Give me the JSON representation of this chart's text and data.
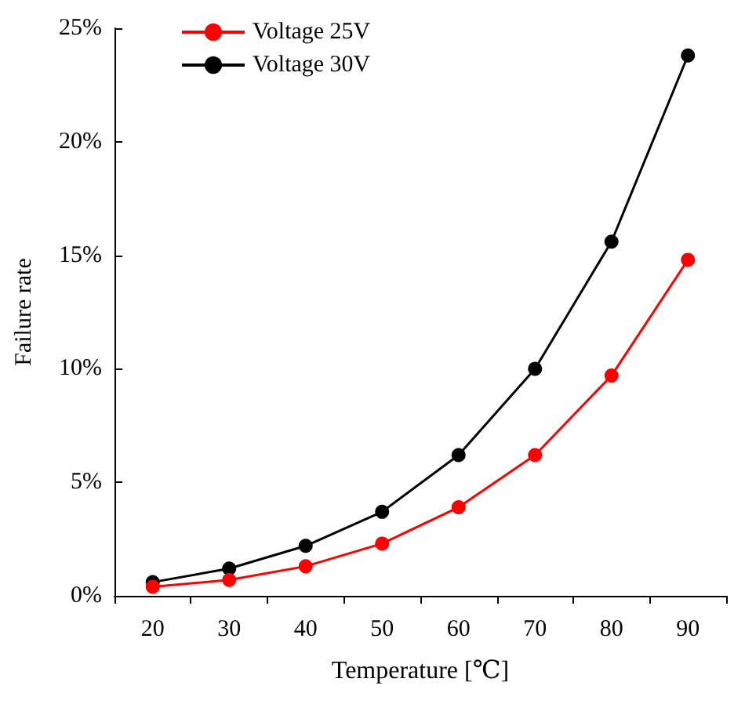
{
  "chart_data": {
    "type": "line",
    "xlabel": "Temperature [℃]",
    "ylabel": "Failure rate",
    "categories": [
      "20",
      "30",
      "40",
      "50",
      "60",
      "70",
      "80",
      "90"
    ],
    "series": [
      {
        "name": "Voltage 25V",
        "color": "#ff0000",
        "values": [
          0.4,
          0.7,
          1.3,
          2.3,
          3.9,
          6.2,
          9.7,
          14.8
        ]
      },
      {
        "name": "Voltage 30V",
        "color": "#000000",
        "values": [
          0.6,
          1.2,
          2.2,
          3.7,
          6.2,
          10.0,
          15.6,
          23.8
        ]
      }
    ],
    "ylim": [
      0,
      25
    ],
    "yticks": [
      {
        "value": 0,
        "label": "0%"
      },
      {
        "value": 5,
        "label": "5%"
      },
      {
        "value": 10,
        "label": "10%"
      },
      {
        "value": 15,
        "label": "15%"
      },
      {
        "value": 20,
        "label": "20%"
      },
      {
        "value": 25,
        "label": "25%"
      }
    ],
    "grid": false,
    "legend": "top left",
    "marker": "circle",
    "line_style": "solid"
  }
}
